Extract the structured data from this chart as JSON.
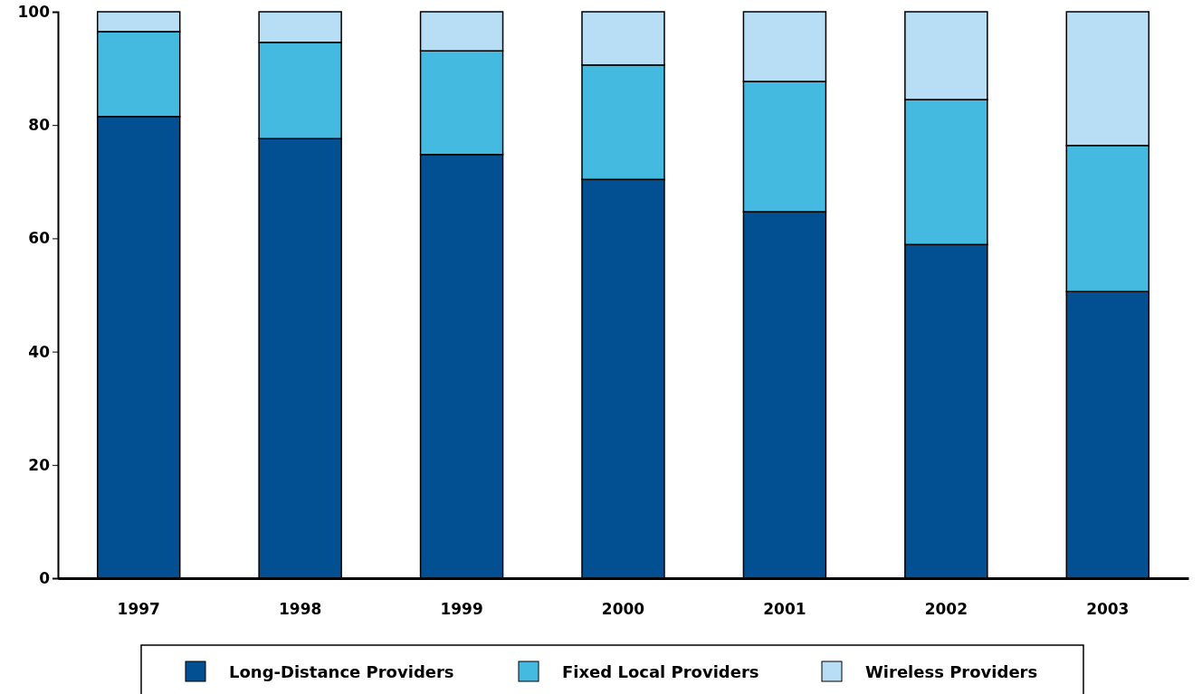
{
  "chart_data": {
    "type": "bar",
    "stacked": true,
    "categories": [
      "1997",
      "1998",
      "1999",
      "2000",
      "2001",
      "2002",
      "2003"
    ],
    "series": [
      {
        "name": "Long-Distance Providers",
        "color": "#024f91",
        "values": [
          81.5,
          77.6,
          74.8,
          70.4,
          64.7,
          58.9,
          50.6
        ]
      },
      {
        "name": "Fixed Local Providers",
        "color": "#44bae1",
        "values": [
          15.0,
          17.0,
          18.3,
          20.2,
          23.0,
          25.6,
          25.8
        ]
      },
      {
        "name": "Wireless Providers",
        "color": "#b7def4",
        "values": [
          3.5,
          5.4,
          6.9,
          9.4,
          12.3,
          15.5,
          23.6
        ]
      }
    ],
    "ylim": [
      0,
      100
    ],
    "yticks": [
      0,
      20,
      40,
      60,
      80,
      100
    ],
    "grid": false,
    "legend": "bottom"
  }
}
